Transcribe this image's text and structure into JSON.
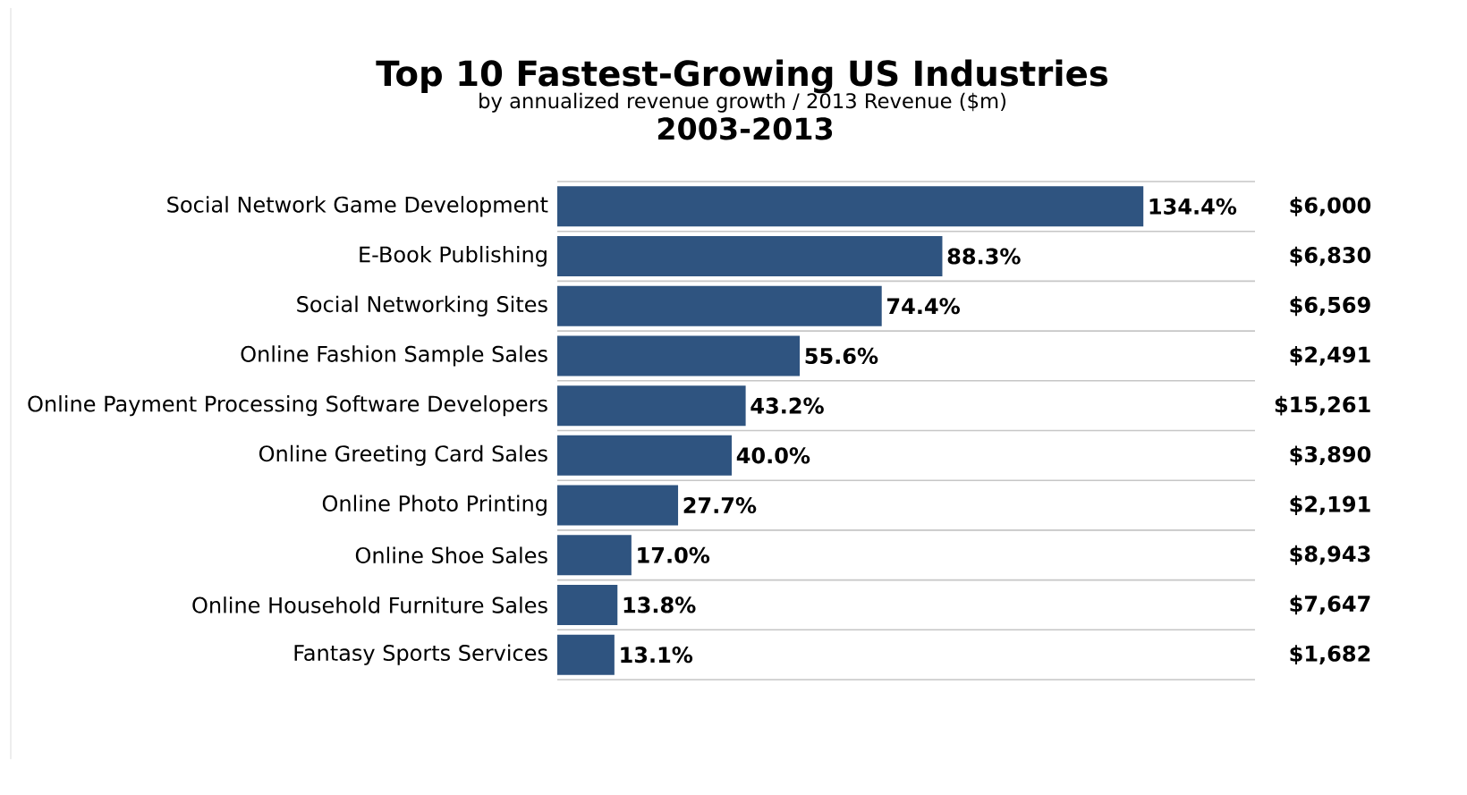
{
  "chart_data": {
    "type": "bar",
    "orientation": "horizontal",
    "title": "Top 10 Fastest-Growing US Industries",
    "subtitle": "by annualized revenue growth / 2013 Revenue ($m)",
    "categories": [
      "Social Network Game Development",
      "E-Book Publishing",
      "Social Networking Sites",
      "Online Fashion Sample Sales",
      "Online Payment Processing Software Developers",
      "Online Greeting Card Sales",
      "Online Photo Printing",
      "Online Shoe Sales",
      "Online Household Furniture Sales",
      "Fantasy Sports Services"
    ],
    "values": [
      134.4,
      88.3,
      74.4,
      55.6,
      43.2,
      40.0,
      27.7,
      17.0,
      13.8,
      13.1
    ],
    "value_labels": [
      "134.4%",
      "88.3%",
      "74.4%",
      "55.6%",
      "43.2%",
      "40.0%",
      "27.7%",
      "17.0%",
      "13.8%",
      "13.1%"
    ],
    "color": "#2f5480",
    "xlim": [
      0,
      160
    ],
    "grid": "y",
    "annotations": [
      "2003-2013",
      "$6,000",
      "$6,830",
      "$6,569",
      "$2,491",
      "$15,261",
      "$3,890",
      "$2,191",
      "$8,943",
      "$7,647",
      "$1,682"
    ]
  }
}
